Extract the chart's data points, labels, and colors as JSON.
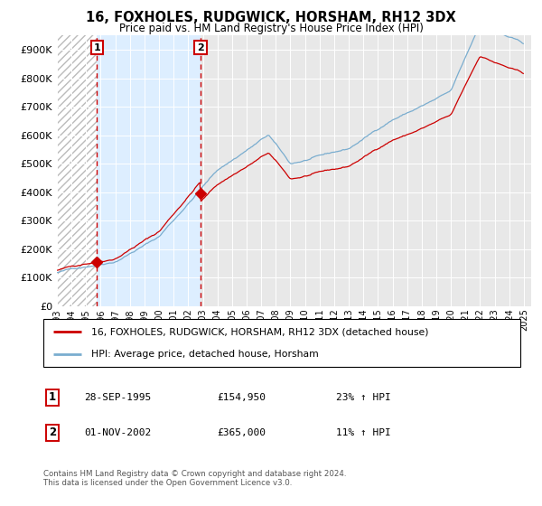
{
  "title": "16, FOXHOLES, RUDGWICK, HORSHAM, RH12 3DX",
  "subtitle": "Price paid vs. HM Land Registry's House Price Index (HPI)",
  "legend_label_red": "16, FOXHOLES, RUDGWICK, HORSHAM, RH12 3DX (detached house)",
  "legend_label_blue": "HPI: Average price, detached house, Horsham",
  "transaction1_date": "28-SEP-1995",
  "transaction1_price": "£154,950",
  "transaction1_hpi": "23% ↑ HPI",
  "transaction2_date": "01-NOV-2002",
  "transaction2_price": "£365,000",
  "transaction2_hpi": "11% ↑ HPI",
  "footer": "Contains HM Land Registry data © Crown copyright and database right 2024.\nThis data is licensed under the Open Government Licence v3.0.",
  "transaction1_year": 1995.75,
  "transaction2_year": 2002.84,
  "transaction1_value": 154950,
  "transaction2_value": 365000,
  "red_color": "#cc0000",
  "blue_color": "#7aadcf",
  "dashed_color": "#cc0000",
  "ylim_min": 0,
  "ylim_max": 950000,
  "xlim_min": 1993.0,
  "xlim_max": 2025.5,
  "background_color": "#ffffff",
  "plot_bg_color": "#e8e8e8",
  "hatch_bg_color": "#ffffff",
  "between_tx_color": "#ddeeff"
}
